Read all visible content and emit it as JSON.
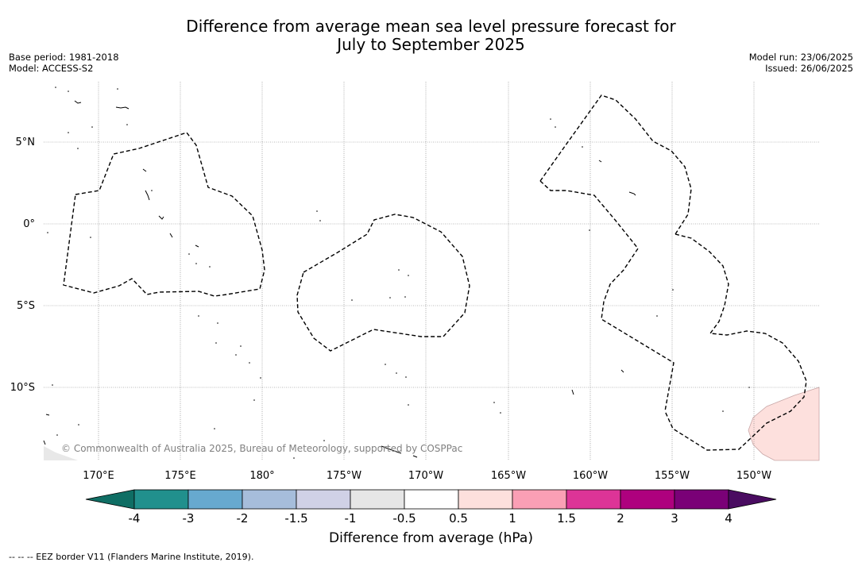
{
  "title": {
    "line1": "Difference from average mean sea level pressure forecast for",
    "line2": "July to September 2025"
  },
  "meta_left": {
    "base_period": "Base period: 1981-2018",
    "model": "Model: ACCESS-S2"
  },
  "meta_right": {
    "model_run": "Model run: 23/06/2025",
    "issued": "Issued: 26/06/2025"
  },
  "map": {
    "lat_labels": [
      "5°N",
      "0°",
      "5°S",
      "10°S"
    ],
    "lon_labels": [
      "170°E",
      "175°E",
      "180°",
      "175°W",
      "170°W",
      "165°W",
      "160°W",
      "155°W",
      "150°W"
    ],
    "credit": "© Commonwealth of Australia 2025, Bureau of Meteorology, supported by COSPPac",
    "anomaly_region_color": "#fde0dd",
    "anomaly_region_value": "0.5 to 1"
  },
  "colorbar": {
    "title": "Difference from average (hPa)",
    "tick_labels": [
      "-4",
      "-3",
      "-2",
      "-1.5",
      "-1",
      "-0.5",
      "0.5",
      "1",
      "1.5",
      "2",
      "3",
      "4"
    ],
    "low_extend_color": "#0f6e64",
    "high_extend_color": "#4a0c61",
    "bin_colors": [
      "#21908d",
      "#67a9cf",
      "#a6bddb",
      "#d0d1e6",
      "#e6e6e6",
      "#ffffff",
      "#fde0dd",
      "#fa9fb5",
      "#dd3497",
      "#ae017e",
      "#7a0177"
    ]
  },
  "footnote": "--  --  -- EEZ border V11 (Flanders Marine Institute, 2019)."
}
